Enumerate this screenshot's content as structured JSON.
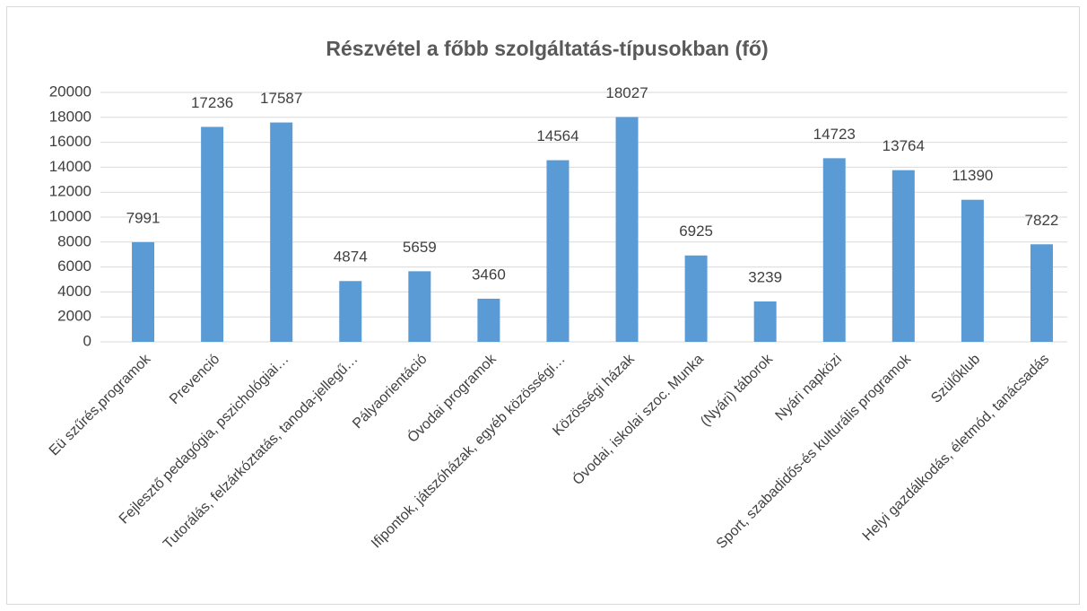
{
  "chart_data": {
    "type": "bar",
    "title": "Részvétel a főbb szolgáltatás-típusokban (fő)",
    "categories": [
      "Eü szűrés,programok",
      "Prevenció",
      "Fejlesztő pedagógia, pszichológiai…",
      "Tutorálás, felzárkóztatás, tanoda-jellegű…",
      "Pályaorientáció",
      "Óvodai programok",
      "Ifipontok, játszóházak, egyéb közösségi…",
      "Közösségi házak",
      "Óvodai, iskolai szoc. Munka",
      "(Nyári) táborok",
      "Nyári napközi",
      "Sport, szabadidős-és kulturális programok",
      "Szülőklub",
      "Helyi gazdálkodás, életmód, tanácsadás"
    ],
    "values": [
      7991,
      17236,
      17587,
      4874,
      5659,
      3460,
      14564,
      18027,
      6925,
      3239,
      14723,
      13764,
      11390,
      7822
    ],
    "color": "#5b9bd5",
    "ylim": [
      0,
      20000
    ],
    "yticks": [
      0,
      2000,
      4000,
      6000,
      8000,
      10000,
      12000,
      14000,
      16000,
      18000,
      20000
    ],
    "grid": true
  }
}
